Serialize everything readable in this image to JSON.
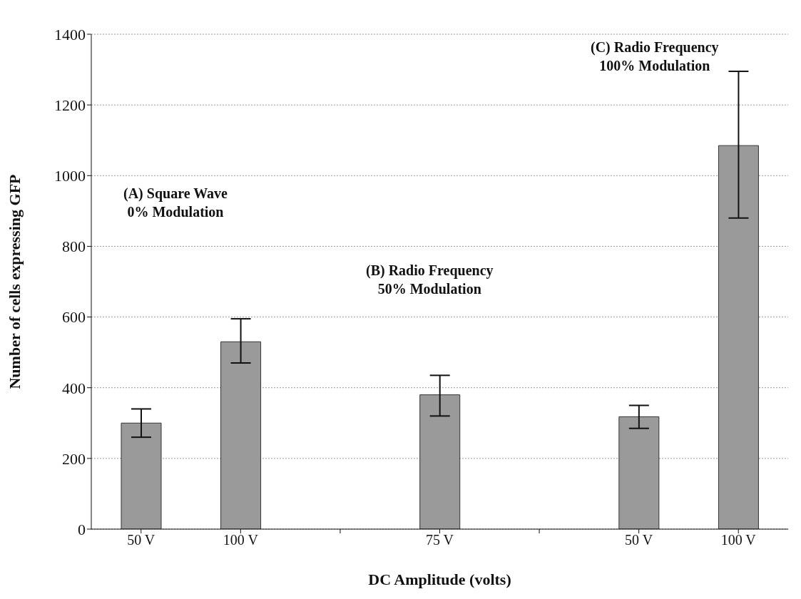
{
  "chart_data": {
    "type": "bar",
    "xlabel": "DC Amplitude (volts)",
    "ylabel": "Number of cells expressing GFP",
    "categories": [
      "50 V",
      "100 V",
      null,
      "75 V",
      null,
      "50 V",
      "100 V"
    ],
    "values": [
      300,
      530,
      null,
      380,
      null,
      318,
      1085
    ],
    "errors": [
      [
        260,
        340
      ],
      [
        470,
        595
      ],
      null,
      [
        320,
        435
      ],
      null,
      [
        285,
        350
      ],
      [
        880,
        1295
      ]
    ],
    "color": "#9a9a9a",
    "ylim": [
      0,
      1400
    ],
    "yticks": [
      0,
      200,
      400,
      600,
      800,
      1000,
      1200,
      1400
    ],
    "grid": "y",
    "annotations": [
      "(A) Square Wave\n0% Modulation",
      "(B) Radio Frequency\n50% Modulation",
      "(C) Radio Frequency\n100% Modulation"
    ]
  }
}
